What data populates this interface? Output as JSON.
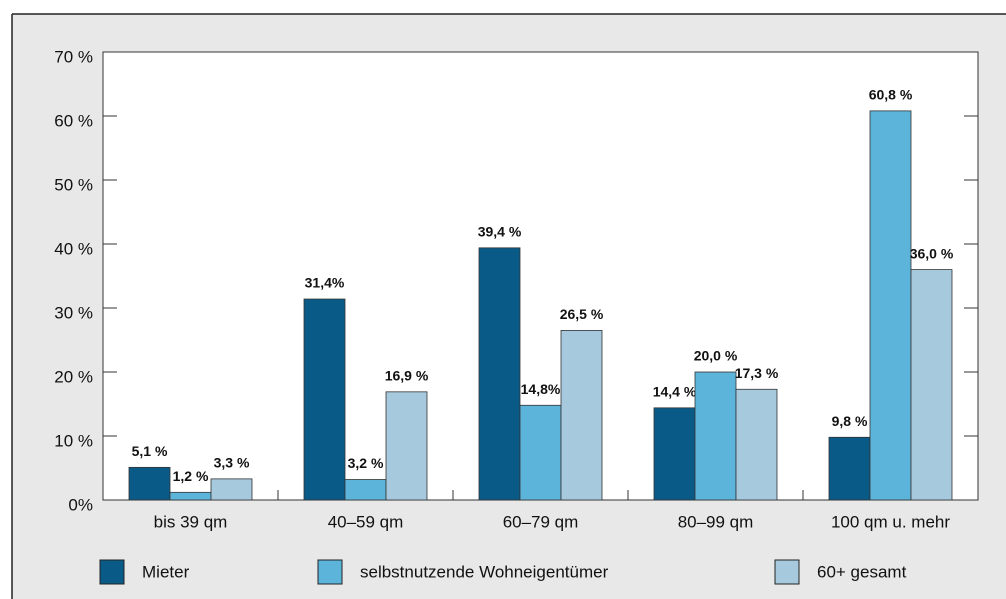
{
  "chart_data": {
    "type": "bar",
    "categories": [
      "bis 39 qm",
      "40–59 qm",
      "60–79 qm",
      "80–99 qm",
      "100 qm u. mehr"
    ],
    "series": [
      {
        "name": "Mieter",
        "color": "#0a5a88",
        "values": [
          5.1,
          31.4,
          39.4,
          14.4,
          9.8
        ],
        "value_labels": [
          "5,1 %",
          "31,4%",
          "39,4 %",
          "14,4 %",
          "9,8 %"
        ]
      },
      {
        "name": "selbstnutzende Wohneigentümer",
        "color": "#5cb4da",
        "values": [
          1.2,
          3.2,
          14.8,
          20.0,
          60.8
        ],
        "value_labels": [
          "1,2 %",
          "3,2 %",
          "14,8%",
          "20,0 %",
          "60,8 %"
        ]
      },
      {
        "name": "60+ gesamt",
        "color": "#a7c9dd",
        "values": [
          3.3,
          16.9,
          26.5,
          17.3,
          36.0
        ],
        "value_labels": [
          "3,3 %",
          "16,9 %",
          "26,5 %",
          "17,3 %",
          "36,0 %"
        ]
      }
    ],
    "ylim": [
      0,
      70
    ],
    "yticks": [
      {
        "value": 0,
        "label": "0%"
      },
      {
        "value": 10,
        "label": "10 %"
      },
      {
        "value": 20,
        "label": "20 %"
      },
      {
        "value": 30,
        "label": "30 %"
      },
      {
        "value": 40,
        "label": "40 %"
      },
      {
        "value": 50,
        "label": "50 %"
      },
      {
        "value": 60,
        "label": "60 %"
      },
      {
        "value": 70,
        "label": "70 %"
      }
    ],
    "legend": "bottom"
  }
}
